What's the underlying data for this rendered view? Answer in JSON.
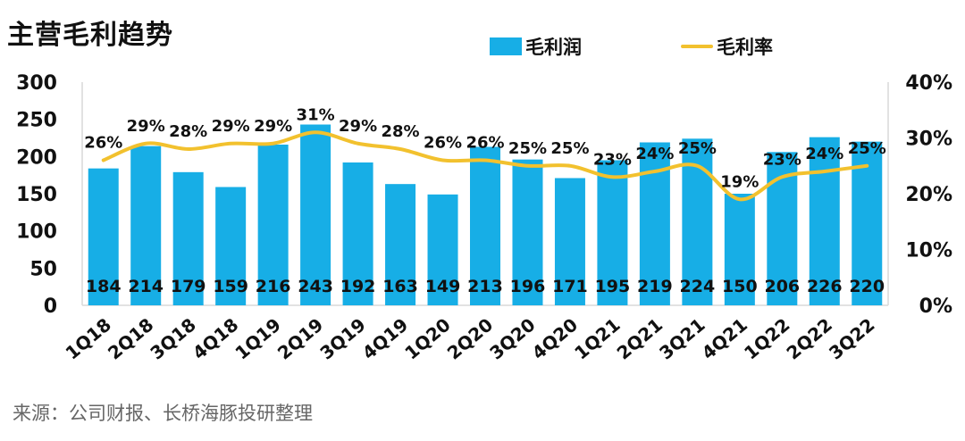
{
  "title": "主营毛利趋势",
  "source_note": "来源：公司财报、长桥海豚投研整理",
  "colors": {
    "bar": "#17aee6",
    "line": "#f2c12e",
    "axis": "#d9d9d9",
    "text": "#111111"
  },
  "chart_data": {
    "type": "bar",
    "categories": [
      "1Q18",
      "2Q18",
      "3Q18",
      "4Q18",
      "1Q19",
      "2Q19",
      "3Q19",
      "4Q19",
      "1Q20",
      "2Q20",
      "3Q20",
      "4Q20",
      "1Q21",
      "2Q21",
      "3Q21",
      "4Q21",
      "1Q22",
      "2Q22",
      "3Q22"
    ],
    "series": [
      {
        "name": "毛利润",
        "type": "bar",
        "axis": "left",
        "values": [
          184,
          214,
          179,
          159,
          216,
          243,
          192,
          163,
          149,
          213,
          196,
          171,
          195,
          219,
          224,
          150,
          206,
          226,
          220
        ],
        "labels": [
          "184",
          "214",
          "179",
          "159",
          "216",
          "243",
          "192",
          "163",
          "149",
          "213",
          "196",
          "171",
          "195",
          "219",
          "224",
          "150",
          "206",
          "226",
          "220"
        ]
      },
      {
        "name": "毛利率",
        "type": "line",
        "axis": "right",
        "values": [
          0.26,
          0.29,
          0.28,
          0.29,
          0.29,
          0.31,
          0.29,
          0.28,
          0.26,
          0.26,
          0.25,
          0.25,
          0.23,
          0.24,
          0.25,
          0.19,
          0.23,
          0.24,
          0.25
        ],
        "labels": [
          "26%",
          "29%",
          "28%",
          "29%",
          "29%",
          "31%",
          "29%",
          "28%",
          "26%",
          "26%",
          "25%",
          "25%",
          "23%",
          "24%",
          "25%",
          "19%",
          "23%",
          "24%",
          "25%"
        ]
      }
    ],
    "y_left": {
      "min": 0,
      "max": 300,
      "ticks": [
        "0",
        "50",
        "100",
        "150",
        "200",
        "250",
        "300"
      ]
    },
    "y_right": {
      "min": 0,
      "max": 0.4,
      "ticks": [
        "0%",
        "10%",
        "20%",
        "30%",
        "40%"
      ]
    },
    "legend_position": "top",
    "grid": false
  }
}
